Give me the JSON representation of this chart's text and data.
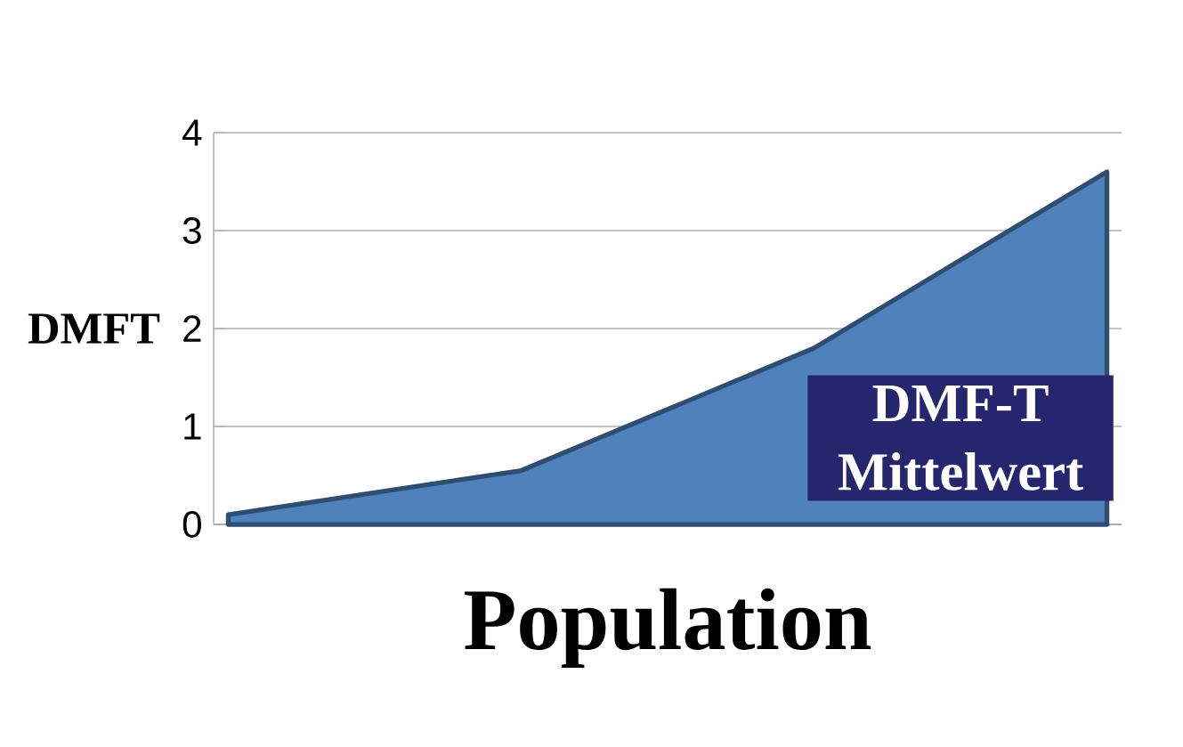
{
  "chart_data": {
    "type": "area",
    "ylabel": "DMFT",
    "xlabel": "Population",
    "categories": [
      null,
      null,
      null,
      null
    ],
    "series": [
      {
        "name": "DMF-T Mittelwert",
        "color": "#4f81bd",
        "values": [
          0.1,
          0.55,
          1.8,
          3.6
        ]
      }
    ],
    "ylim": [
      0,
      4
    ],
    "yticks": [
      0,
      1,
      2,
      3,
      4
    ],
    "grid": "y"
  }
}
